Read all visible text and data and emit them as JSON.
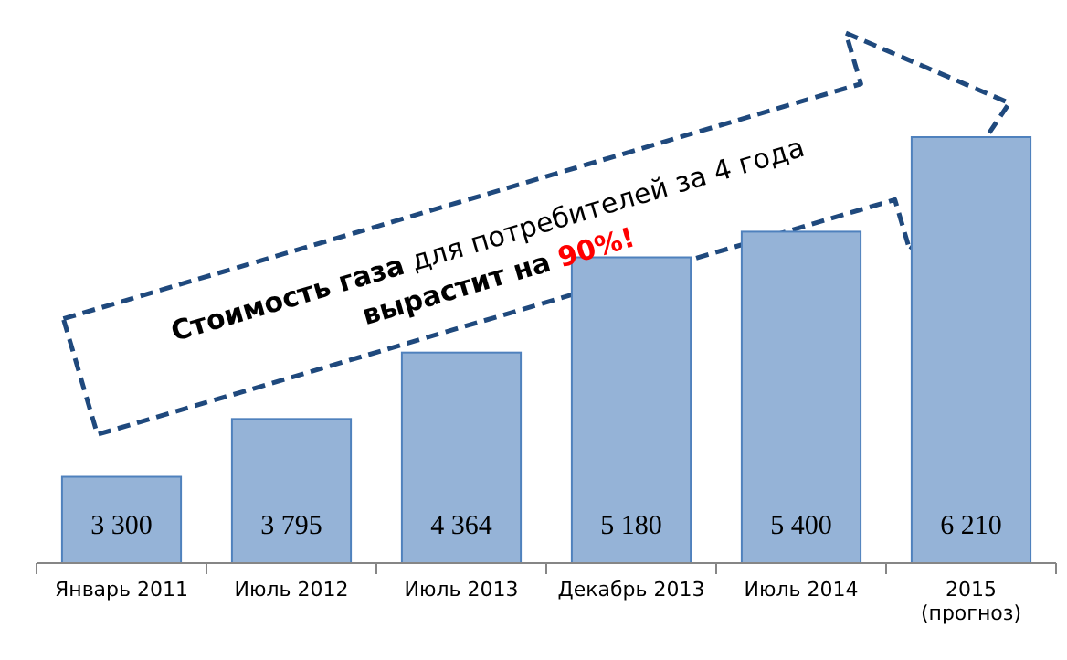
{
  "chart_data": {
    "type": "bar",
    "categories": [
      "Январь 2011",
      "Июль 2012",
      "Июль 2013",
      "Декабрь 2013",
      "Июль 2014",
      "2015 (прогноз)"
    ],
    "values": [
      3300,
      3795,
      4364,
      5180,
      5400,
      6210
    ],
    "value_labels": [
      "3 300",
      "3 795",
      "4 364",
      "5 180",
      "5 400",
      "6 210"
    ],
    "color": "#95b3d7",
    "ylim": [
      2560,
      6210
    ],
    "annotations": [
      "Стоимость газа",
      "для потребителей за 4 года",
      "вырастит на",
      "90%!"
    ]
  }
}
